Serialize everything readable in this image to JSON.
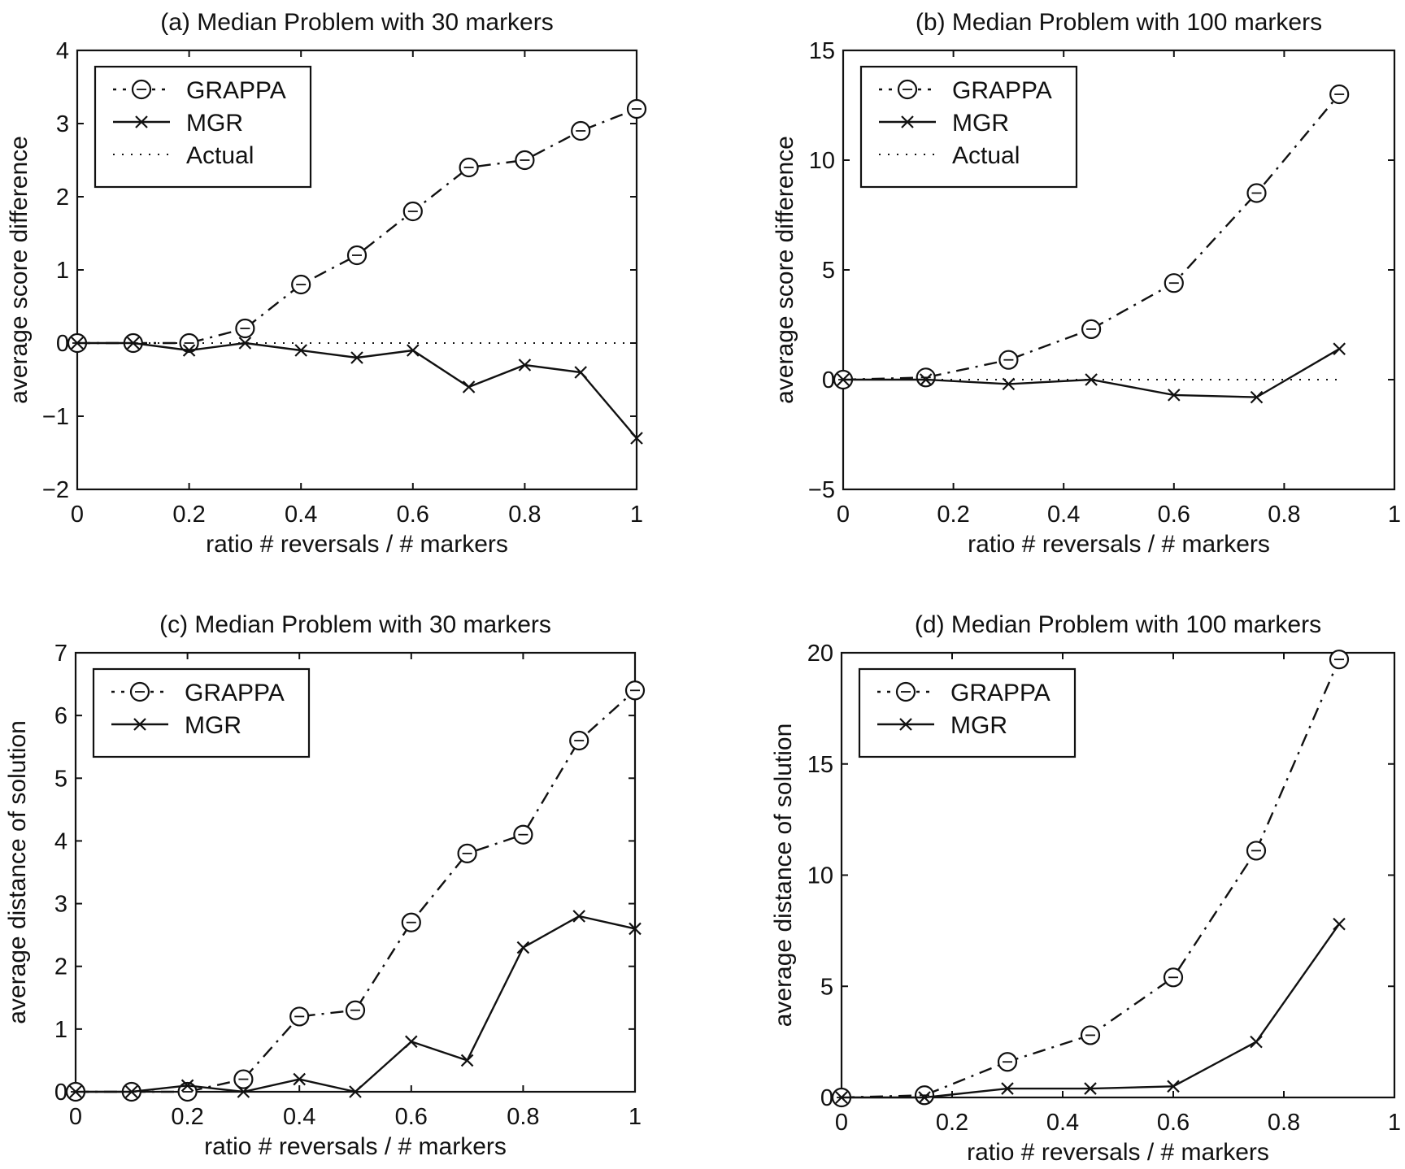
{
  "chart_data": [
    {
      "id": "a",
      "type": "line",
      "title": "(a)  Median Problem with 30 markers",
      "xlabel": "ratio # reversals / # markers",
      "ylabel": "average score difference",
      "xlim": [
        0,
        1
      ],
      "ylim": [
        -2,
        4
      ],
      "xticks": [
        0,
        0.2,
        0.4,
        0.6,
        0.8,
        1
      ],
      "xtick_labels": [
        "0",
        "0.2",
        "0.4",
        "0.6",
        "0.8",
        "1"
      ],
      "yticks": [
        -2,
        -1,
        0,
        1,
        2,
        3,
        4
      ],
      "ytick_labels": [
        "−2",
        "−1",
        "0",
        "1",
        "2",
        "3",
        "4"
      ],
      "legend": "top-left",
      "series": [
        {
          "name": "GRAPPA",
          "style": "dashdot",
          "marker": "circle",
          "x": [
            0,
            0.1,
            0.2,
            0.3,
            0.4,
            0.5,
            0.6,
            0.7,
            0.8,
            0.9,
            1.0
          ],
          "y": [
            0,
            0,
            0,
            0.2,
            0.8,
            1.2,
            1.8,
            2.4,
            2.5,
            2.9,
            3.2
          ]
        },
        {
          "name": "MGR",
          "style": "solid",
          "marker": "x",
          "x": [
            0,
            0.1,
            0.2,
            0.3,
            0.4,
            0.5,
            0.6,
            0.7,
            0.8,
            0.9,
            1.0
          ],
          "y": [
            0,
            0,
            -0.1,
            0,
            -0.1,
            -0.2,
            -0.1,
            -0.6,
            -0.3,
            -0.4,
            -1.3
          ]
        },
        {
          "name": "Actual",
          "style": "dotted",
          "marker": "none",
          "x": [
            0,
            1.0
          ],
          "y": [
            0,
            0
          ]
        }
      ]
    },
    {
      "id": "b",
      "type": "line",
      "title": "(b)  Median Problem with 100 markers",
      "xlabel": "ratio # reversals / # markers",
      "ylabel": "average score difference",
      "xlim": [
        0,
        1
      ],
      "ylim": [
        -5,
        15
      ],
      "xticks": [
        0,
        0.2,
        0.4,
        0.6,
        0.8,
        1
      ],
      "xtick_labels": [
        "0",
        "0.2",
        "0.4",
        "0.6",
        "0.8",
        "1"
      ],
      "yticks": [
        -5,
        0,
        5,
        10,
        15
      ],
      "ytick_labels": [
        "−5",
        "0",
        "5",
        "10",
        "15"
      ],
      "legend": "top-left",
      "series": [
        {
          "name": "GRAPPA",
          "style": "dashdot",
          "marker": "circle",
          "x": [
            0,
            0.15,
            0.3,
            0.45,
            0.6,
            0.75,
            0.9
          ],
          "y": [
            0,
            0.1,
            0.9,
            2.3,
            4.4,
            8.5,
            13.0
          ]
        },
        {
          "name": "MGR",
          "style": "solid",
          "marker": "x",
          "x": [
            0,
            0.15,
            0.3,
            0.45,
            0.6,
            0.75,
            0.9
          ],
          "y": [
            0,
            0,
            -0.2,
            0,
            -0.7,
            -0.8,
            1.4
          ]
        },
        {
          "name": "Actual",
          "style": "dotted",
          "marker": "none",
          "x": [
            0,
            0.9
          ],
          "y": [
            0,
            0
          ]
        }
      ]
    },
    {
      "id": "c",
      "type": "line",
      "title": "(c)  Median Problem with 30 markers",
      "xlabel": "ratio # reversals / # markers",
      "ylabel": "average distance of solution",
      "xlim": [
        0,
        1
      ],
      "ylim": [
        0,
        7
      ],
      "xticks": [
        0,
        0.2,
        0.4,
        0.6,
        0.8,
        1
      ],
      "xtick_labels": [
        "0",
        "0.2",
        "0.4",
        "0.6",
        "0.8",
        "1"
      ],
      "yticks": [
        0,
        1,
        2,
        3,
        4,
        5,
        6,
        7
      ],
      "ytick_labels": [
        "0",
        "1",
        "2",
        "3",
        "4",
        "5",
        "6",
        "7"
      ],
      "legend": "top-left",
      "series": [
        {
          "name": "GRAPPA",
          "style": "dashdot",
          "marker": "circle",
          "x": [
            0,
            0.1,
            0.2,
            0.3,
            0.4,
            0.5,
            0.6,
            0.7,
            0.8,
            0.9,
            1.0
          ],
          "y": [
            0,
            0,
            0,
            0.2,
            1.2,
            1.3,
            2.7,
            3.8,
            4.1,
            5.6,
            6.4
          ]
        },
        {
          "name": "MGR",
          "style": "solid",
          "marker": "x",
          "x": [
            0,
            0.1,
            0.2,
            0.3,
            0.4,
            0.5,
            0.6,
            0.7,
            0.8,
            0.9,
            1.0
          ],
          "y": [
            0,
            0,
            0.1,
            0,
            0.2,
            0,
            0.8,
            0.5,
            2.3,
            2.8,
            2.6
          ]
        }
      ]
    },
    {
      "id": "d",
      "type": "line",
      "title": "(d)  Median Problem with 100 markers",
      "xlabel": "ratio # reversals / # markers",
      "ylabel": "average distance of solution",
      "xlim": [
        0,
        1
      ],
      "ylim": [
        0,
        20
      ],
      "xticks": [
        0,
        0.2,
        0.4,
        0.6,
        0.8,
        1
      ],
      "xtick_labels": [
        "0",
        "0.2",
        "0.4",
        "0.6",
        "0.8",
        "1"
      ],
      "yticks": [
        0,
        5,
        10,
        15,
        20
      ],
      "ytick_labels": [
        "0",
        "5",
        "10",
        "15",
        "20"
      ],
      "legend": "top-left",
      "series": [
        {
          "name": "GRAPPA",
          "style": "dashdot",
          "marker": "circle",
          "x": [
            0,
            0.15,
            0.3,
            0.45,
            0.6,
            0.75,
            0.9
          ],
          "y": [
            0,
            0.1,
            1.6,
            2.8,
            5.4,
            11.1,
            19.7
          ]
        },
        {
          "name": "MGR",
          "style": "solid",
          "marker": "x",
          "x": [
            0,
            0.15,
            0.3,
            0.45,
            0.6,
            0.75,
            0.9
          ],
          "y": [
            0,
            0,
            0.4,
            0.4,
            0.5,
            2.5,
            7.8
          ]
        }
      ]
    }
  ]
}
